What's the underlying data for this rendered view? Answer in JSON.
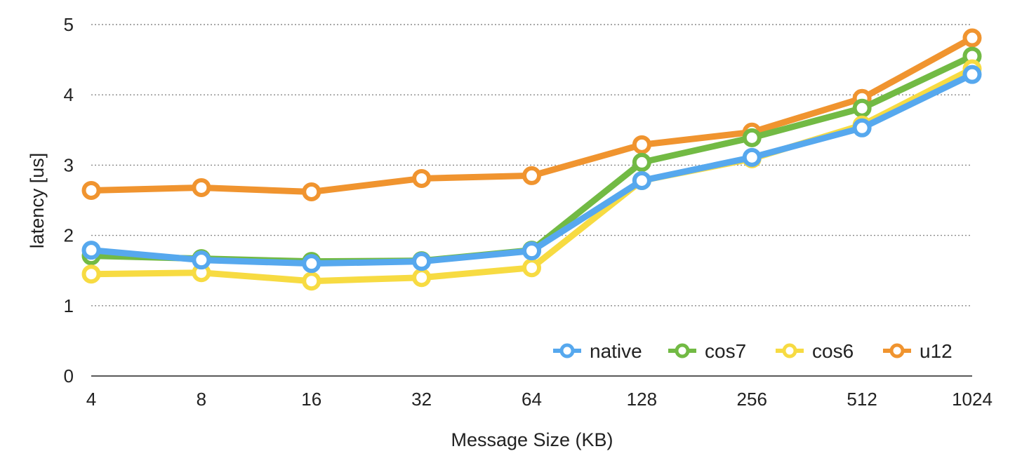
{
  "chart_data": {
    "type": "line",
    "title": "",
    "xlabel": "Message Size (KB)",
    "ylabel": "latency [us]",
    "categories": [
      "4",
      "8",
      "16",
      "32",
      "64",
      "128",
      "256",
      "512",
      "1024"
    ],
    "yticks": [
      "0",
      "1",
      "2",
      "3",
      "4",
      "5"
    ],
    "ylim": [
      0,
      5
    ],
    "grid": "horizontal dotted",
    "legend_position": "bottom-right",
    "series": [
      {
        "name": "u12",
        "color": "#F0942F",
        "values": [
          2.64,
          2.68,
          2.62,
          2.81,
          2.85,
          3.29,
          3.47,
          3.95,
          4.81
        ]
      },
      {
        "name": "cos7",
        "color": "#72BA44",
        "values": [
          1.71,
          1.67,
          1.63,
          1.64,
          1.79,
          3.04,
          3.39,
          3.81,
          4.55
        ]
      },
      {
        "name": "cos6",
        "color": "#F7DB42",
        "values": [
          1.45,
          1.47,
          1.35,
          1.4,
          1.54,
          2.78,
          3.09,
          3.57,
          4.37
        ]
      },
      {
        "name": "native",
        "color": "#56A8EE",
        "values": [
          1.79,
          1.65,
          1.6,
          1.63,
          1.78,
          2.78,
          3.11,
          3.53,
          4.29
        ]
      }
    ],
    "legend_order": [
      "native",
      "cos7",
      "cos6",
      "u12"
    ]
  }
}
